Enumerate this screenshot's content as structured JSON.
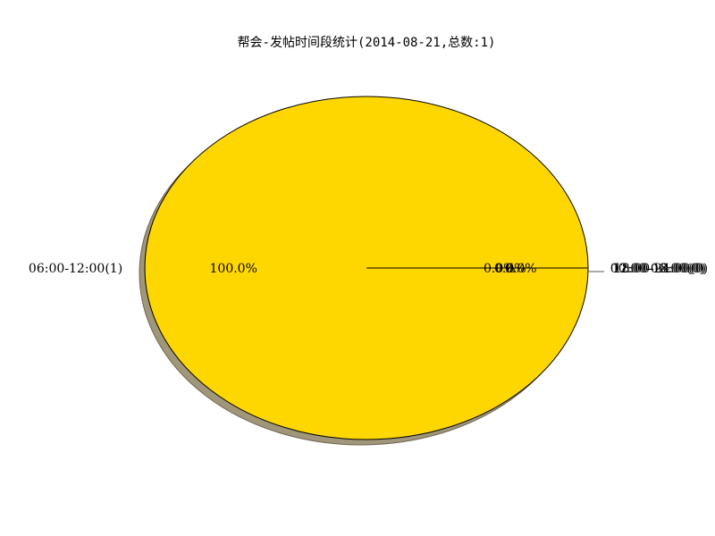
{
  "chart_data": {
    "type": "pie",
    "title": "帮会-发帖时间段统计(2014-08-21,总数:1)",
    "shadow": true,
    "slices": [
      {
        "label": "06:00-12:00(1)",
        "value": 1,
        "pct_label": "100.0%",
        "color": "#ffd700"
      },
      {
        "label": "00:00-06:00(0)",
        "value": 0,
        "pct_label": "0.0%",
        "color": "#ff8c00"
      },
      {
        "label": "12:00-18:00(0)",
        "value": 0,
        "pct_label": "0.0%",
        "color": "#ffffe0"
      },
      {
        "label": "18:00-24:00(0)",
        "value": 0,
        "pct_label": "0.0%",
        "color": "#f0e68c"
      }
    ],
    "shadow_color": "#a0967a",
    "edge_color": "#000000"
  }
}
